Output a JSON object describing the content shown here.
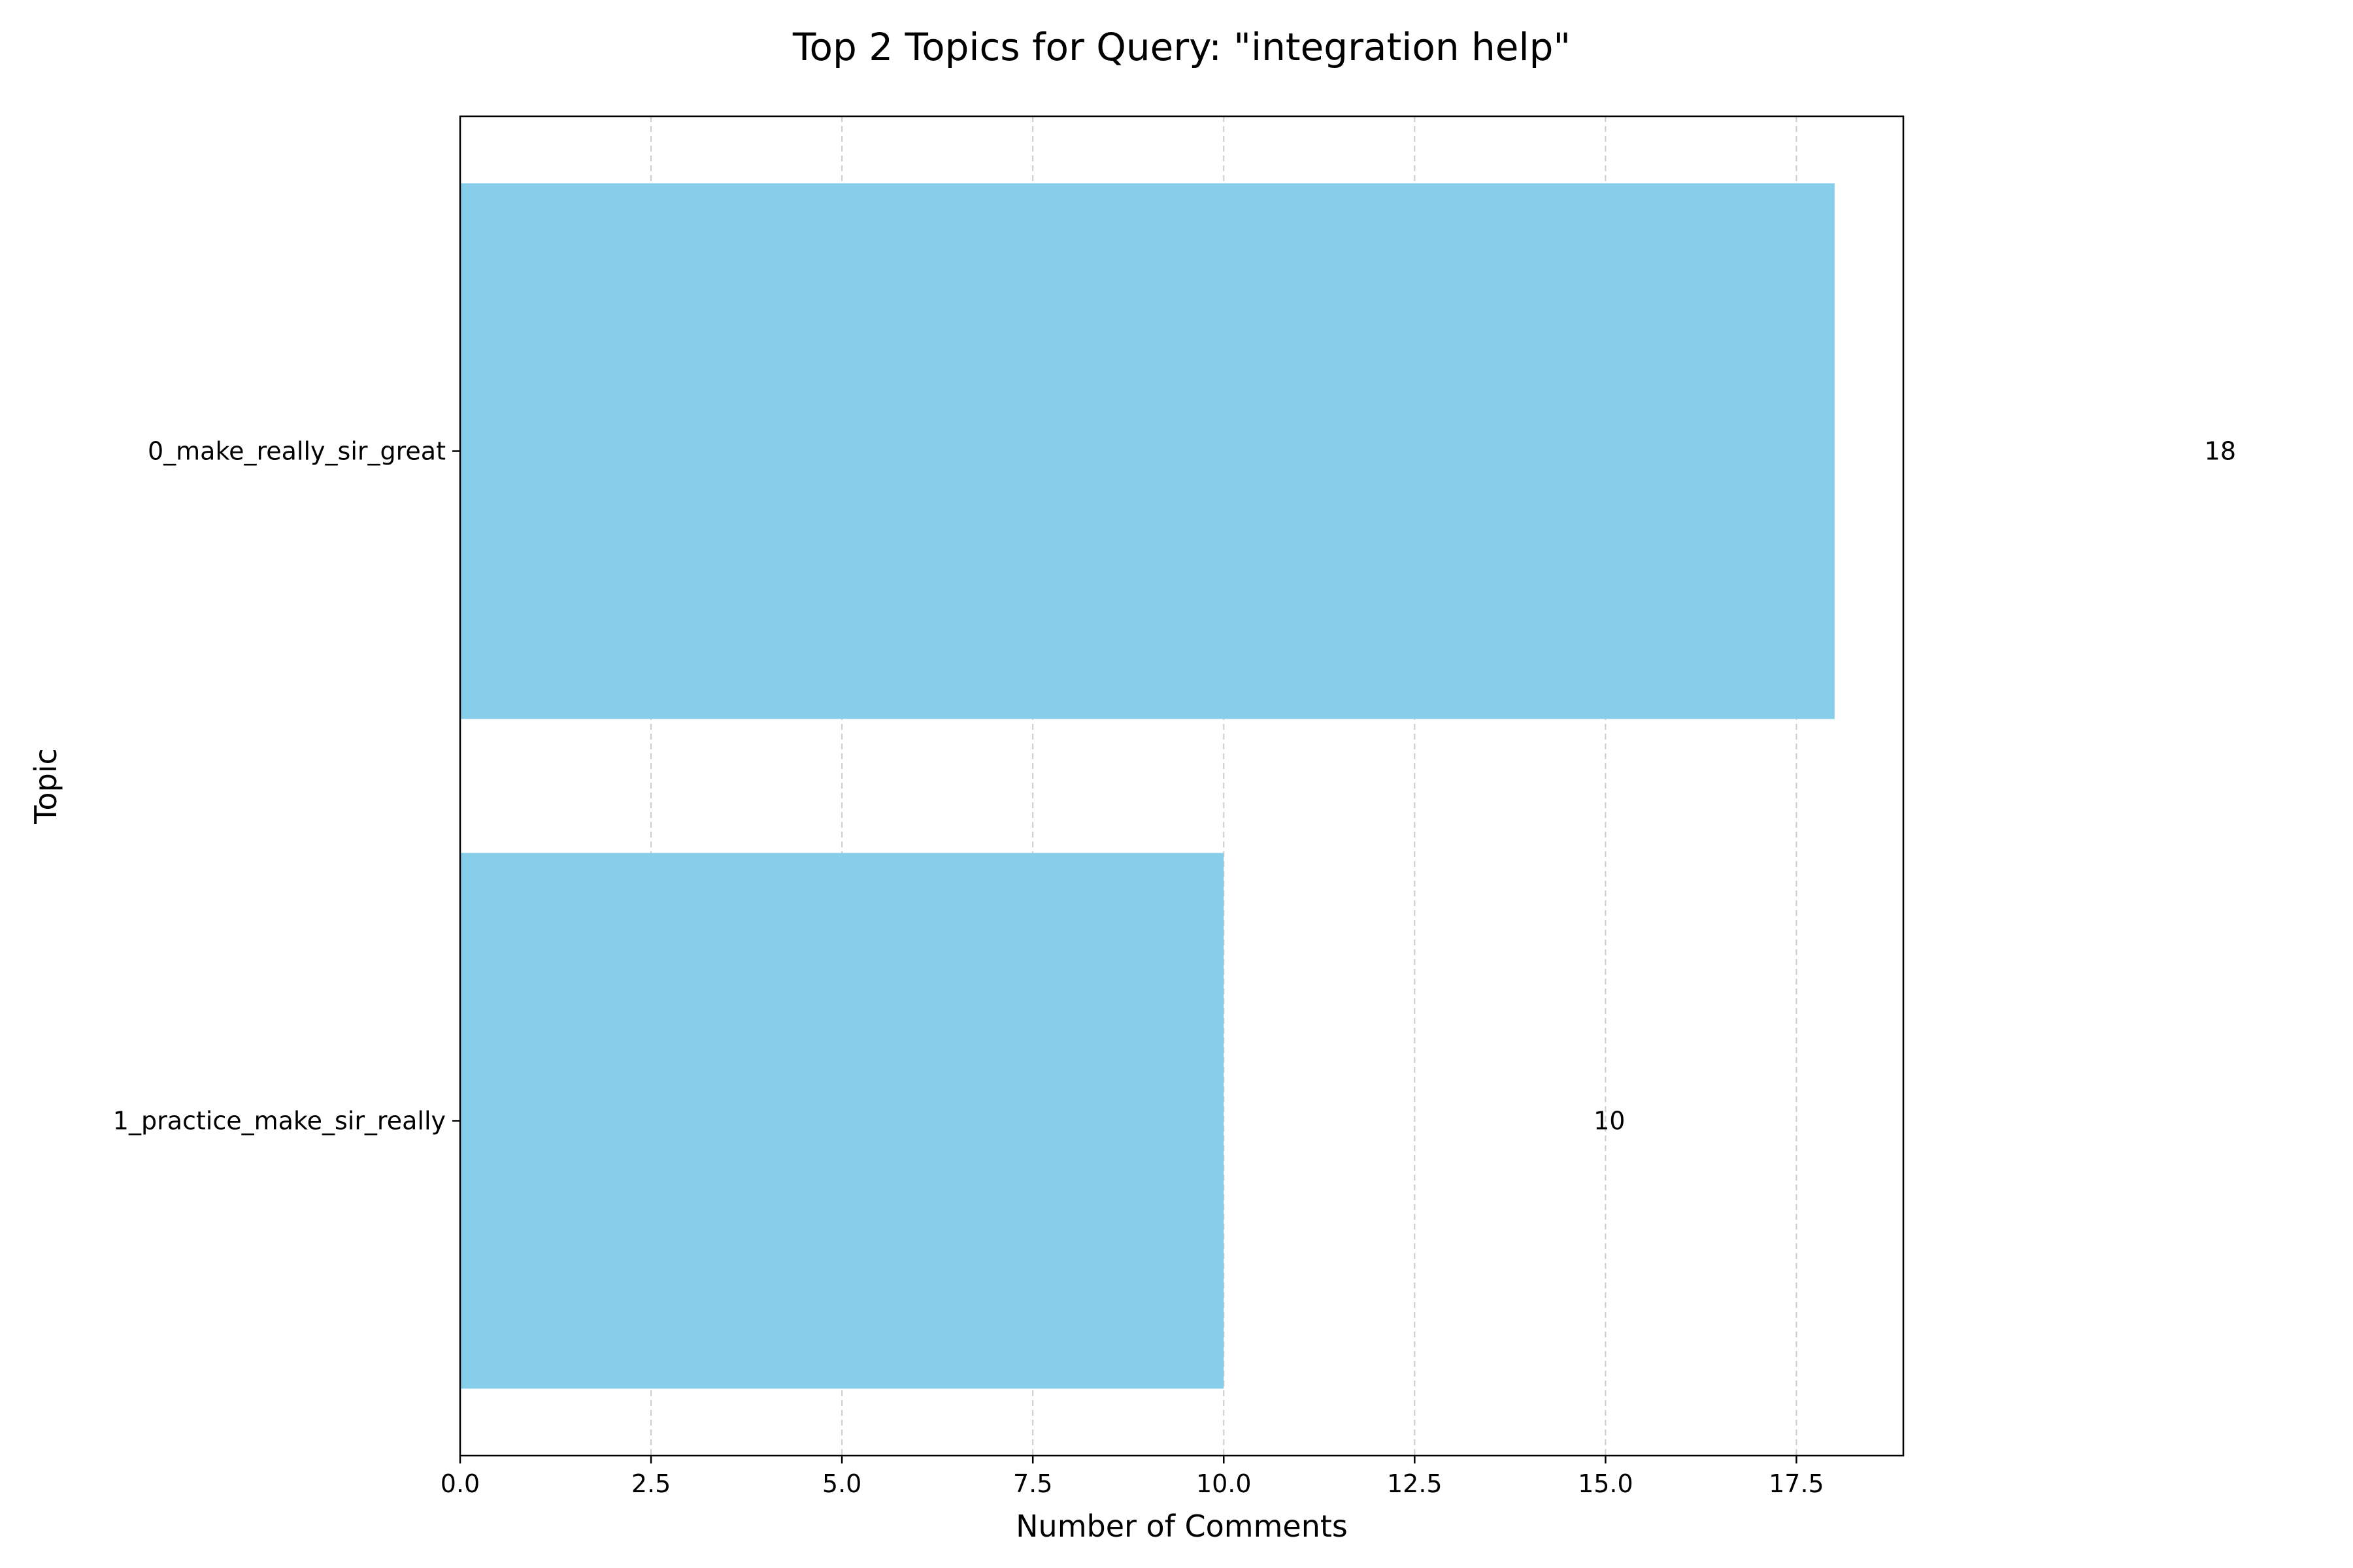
{
  "chart_data": {
    "type": "bar",
    "orientation": "horizontal",
    "title": "Top 2 Topics for Query: \"integration help\"",
    "xlabel": "Number of Comments",
    "ylabel": "Topic",
    "categories": [
      "0_make_really_sir_great",
      "1_practice_make_sir_really"
    ],
    "values": [
      18,
      10
    ],
    "data_labels": [
      "18",
      "10"
    ],
    "xlim": [
      0,
      18.9
    ],
    "xticks": [
      0.0,
      2.5,
      5.0,
      7.5,
      10.0,
      12.5,
      15.0,
      17.5
    ],
    "xtick_labels": [
      "0.0",
      "2.5",
      "5.0",
      "7.5",
      "10.0",
      "12.5",
      "15.0",
      "17.5"
    ],
    "grid": "x-axis, dashed",
    "legend": "none",
    "colors": {
      "bar": "#87CEEB",
      "grid": "#cccccc",
      "axes": "#000000",
      "background": "#ffffff"
    }
  }
}
